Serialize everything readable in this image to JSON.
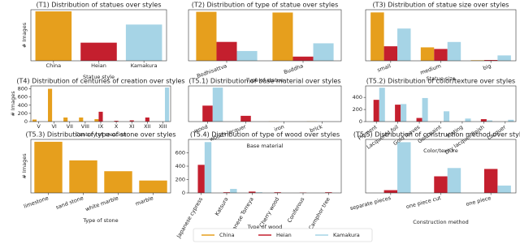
{
  "chart_data": [
    {
      "type": "bar",
      "title": "(T1) Distribution of statues over styles",
      "xlabel": "Statue style",
      "ylabel": "# Images",
      "categories": [
        "China",
        "Heian",
        "Kamakura"
      ],
      "values": [
        1500,
        550,
        1100
      ],
      "colors": [
        "#e69f1d",
        "#c41f2e",
        "#a6d4e6"
      ],
      "ylim": [
        0,
        1550
      ]
    },
    {
      "type": "bar",
      "title": "(T2) Distribution of type of statue over styles",
      "xlabel": "Type of statue",
      "categories": [
        "Bodhisattva",
        "Buddha"
      ],
      "series": [
        {
          "name": "China",
          "color": "#e69f1d",
          "values": [
            700,
            690
          ]
        },
        {
          "name": "Heian",
          "color": "#c41f2e",
          "values": [
            270,
            60
          ]
        },
        {
          "name": "Kamakura",
          "color": "#a6d4e6",
          "values": [
            140,
            250
          ]
        }
      ],
      "ylim": [
        0,
        730
      ]
    },
    {
      "type": "bar",
      "title": "(T3) Distribution of statue size over styles",
      "xlabel": "Statue size",
      "categories": [
        "small",
        "medium",
        "big"
      ],
      "series": [
        {
          "name": "China",
          "color": "#e69f1d",
          "values": [
            900,
            250,
            10
          ]
        },
        {
          "name": "Heian",
          "color": "#c41f2e",
          "values": [
            270,
            220,
            15
          ]
        },
        {
          "name": "Kamakura",
          "color": "#a6d4e6",
          "values": [
            600,
            350,
            100
          ]
        }
      ],
      "ylim": [
        0,
        950
      ]
    },
    {
      "type": "bar",
      "title": "(T4) Distribution of centuries of creation over styles",
      "xlabel": "Century of creation",
      "ylabel": "# Images",
      "categories": [
        "V",
        "VI",
        "VII",
        "VIII",
        "IX",
        "X",
        "XI",
        "XII",
        "XIII"
      ],
      "series": [
        {
          "name": "China",
          "color": "#e69f1d",
          "values": [
            50,
            800,
            100,
            100,
            60,
            0,
            0,
            0,
            0
          ]
        },
        {
          "name": "Heian",
          "color": "#c41f2e",
          "values": [
            0,
            0,
            0,
            0,
            240,
            20,
            30,
            100,
            0
          ]
        },
        {
          "name": "Kamakura",
          "color": "#a6d4e6",
          "values": [
            0,
            0,
            0,
            0,
            0,
            0,
            0,
            0,
            830
          ]
        }
      ],
      "ylim": [
        0,
        870
      ],
      "yticks": [
        0,
        200,
        400,
        600,
        800
      ]
    },
    {
      "type": "bar",
      "title": "(T5.1) Distribution of base material over styles",
      "xlabel": "Base material",
      "categories": [
        "wood",
        "wood+lacquer",
        "iron",
        "brick"
      ],
      "series": [
        {
          "name": "China",
          "color": "#e69f1d",
          "values": [
            0,
            0,
            5,
            5
          ]
        },
        {
          "name": "Heian",
          "color": "#c41f2e",
          "values": [
            470,
            170,
            0,
            0
          ]
        },
        {
          "name": "Kamakura",
          "color": "#a6d4e6",
          "values": [
            1000,
            0,
            0,
            0
          ]
        }
      ],
      "ylim": [
        0,
        1050
      ]
    },
    {
      "type": "bar",
      "title": "(T5.2) Distribution of color/texture over styles",
      "xlabel": "Color/texture",
      "categories": [
        "Pigment",
        "Lacquered foil",
        "Gold leaves",
        "Gold paint",
        "Plating",
        "Dry lacquer finish",
        "Lacquer"
      ],
      "series": [
        {
          "name": "China",
          "color": "#e69f1d",
          "values": [
            0,
            0,
            0,
            0,
            0,
            0,
            0
          ]
        },
        {
          "name": "Heian",
          "color": "#c41f2e",
          "values": [
            360,
            280,
            60,
            0,
            0,
            40,
            0
          ]
        },
        {
          "name": "Kamakura",
          "color": "#a6d4e6",
          "values": [
            560,
            290,
            390,
            170,
            50,
            20,
            30
          ]
        }
      ],
      "ylim": [
        0,
        590
      ],
      "yticks": [
        0,
        200,
        400
      ]
    },
    {
      "type": "bar",
      "title": "(T5.3) Distribution of type of stone over styles",
      "xlabel": "Type of stone",
      "ylabel": "# Images",
      "categories": [
        "limestone",
        "sand stone",
        "white marble",
        "marble"
      ],
      "series": [
        {
          "name": "China",
          "color": "#e69f1d",
          "values": [
            330,
            210,
            140,
            80
          ]
        }
      ],
      "ylim": [
        0,
        345
      ]
    },
    {
      "type": "bar",
      "title": "(T5.4) Distribution of type of wood over styles",
      "xlabel": "Type of wood",
      "categories": [
        "Japanese cypress",
        "Katsura",
        "Japanese Torreya",
        "Cherry wood",
        "Coniferous",
        "Camphor tree"
      ],
      "series": [
        {
          "name": "China",
          "color": "#e69f1d",
          "values": [
            0,
            0,
            0,
            0,
            0,
            0
          ]
        },
        {
          "name": "Heian",
          "color": "#c41f2e",
          "values": [
            420,
            10,
            20,
            10,
            5,
            10
          ]
        },
        {
          "name": "Kamakura",
          "color": "#a6d4e6",
          "values": [
            760,
            60,
            10,
            0,
            0,
            0
          ]
        }
      ],
      "ylim": [
        0,
        800
      ],
      "yticks": [
        0,
        200,
        400,
        600
      ]
    },
    {
      "type": "bar",
      "title": "(T5.5) Distribution of construction method over styles",
      "xlabel": "Construction method",
      "categories": [
        "separate pieces",
        "one piece cut",
        "one piece"
      ],
      "series": [
        {
          "name": "China",
          "color": "#e69f1d",
          "values": [
            0,
            0,
            0
          ]
        },
        {
          "name": "Heian",
          "color": "#c41f2e",
          "values": [
            30,
            180,
            260
          ]
        },
        {
          "name": "Kamakura",
          "color": "#a6d4e6",
          "values": [
            550,
            270,
            80
          ]
        }
      ],
      "ylim": [
        0,
        580
      ]
    }
  ]
}
